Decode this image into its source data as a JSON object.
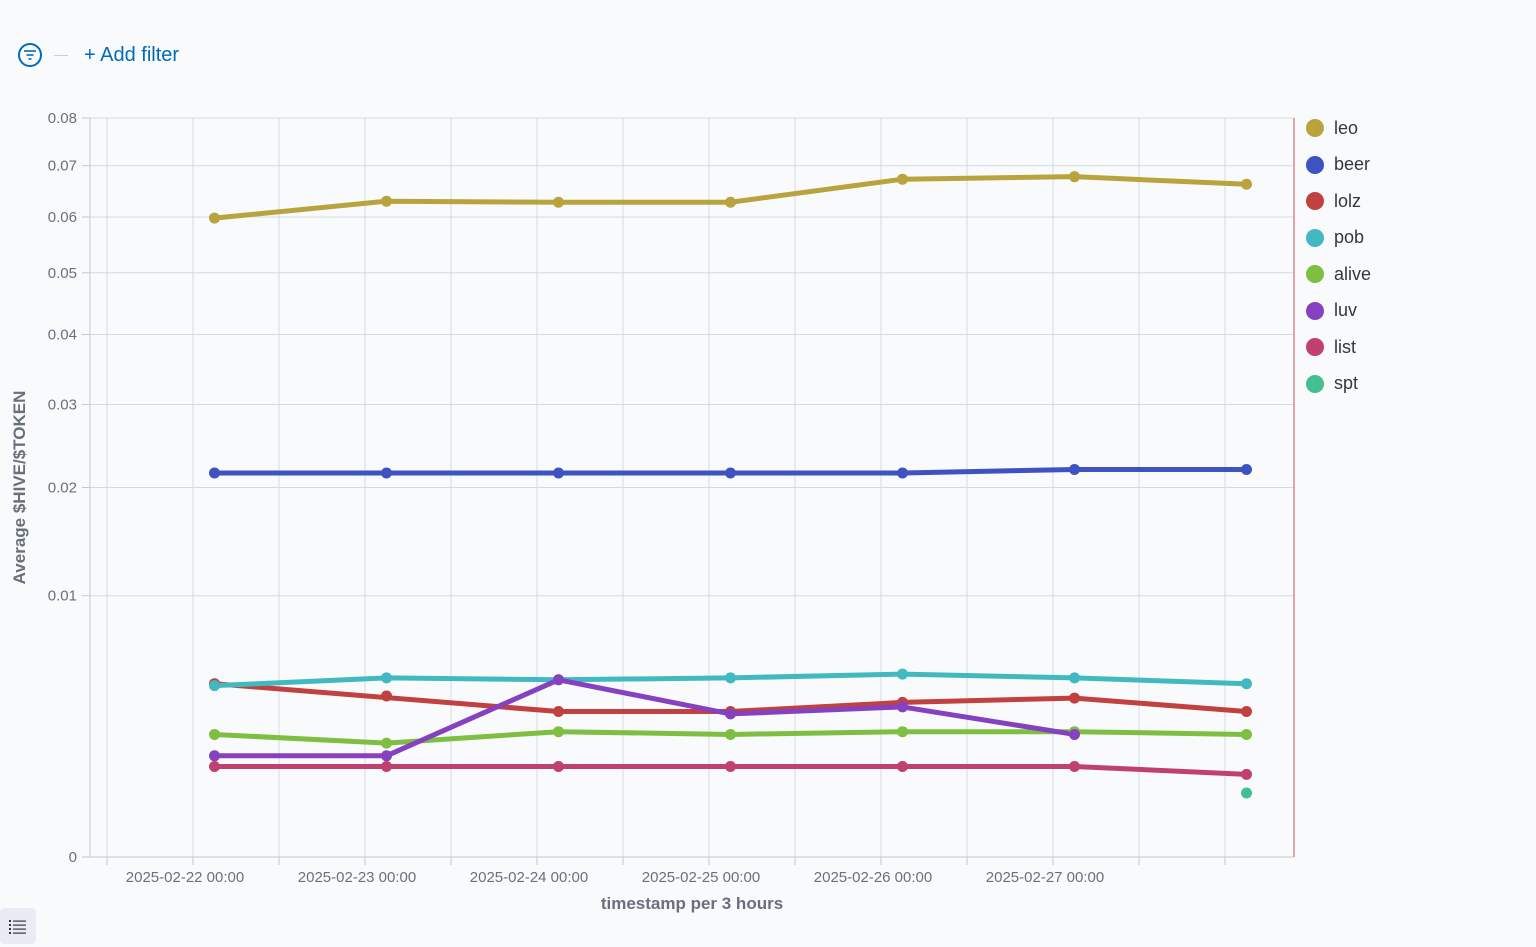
{
  "filter_bar": {
    "add_filter_label": "+ Add filter",
    "filter_icon": "filter-icon"
  },
  "toggle": {
    "icon": "list-icon"
  },
  "chart_data": {
    "type": "line",
    "xlabel": "timestamp per 3 hours",
    "ylabel": "Average $HIVE/$TOKEN",
    "x_ticks": [
      "2025-02-22 00:00",
      "2025-02-23 00:00",
      "2025-02-24 00:00",
      "2025-02-25 00:00",
      "2025-02-26 00:00",
      "2025-02-27 00:00"
    ],
    "y_ticks": [
      "0",
      "0.01",
      "0.02",
      "0.03",
      "0.04",
      "0.05",
      "0.06",
      "0.07",
      "0.08"
    ],
    "ylim": [
      0,
      0.08
    ],
    "y_scale": "sqrt",
    "grid": true,
    "legend_position": "right",
    "x": [
      "2025-02-22 03:00",
      "2025-02-23 03:00",
      "2025-02-24 03:00",
      "2025-02-25 03:00",
      "2025-02-26 03:00",
      "2025-02-27 03:00",
      "2025-02-28 03:00"
    ],
    "series": [
      {
        "name": "leo",
        "color": "#b9a33f",
        "values": [
          0.0598,
          0.063,
          0.0628,
          0.0628,
          0.0673,
          0.0678,
          0.0663
        ]
      },
      {
        "name": "beer",
        "color": "#3f52c1",
        "values": [
          0.0216,
          0.0216,
          0.0216,
          0.0216,
          0.0216,
          0.022,
          0.022
        ]
      },
      {
        "name": "lolz",
        "color": "#c0413f",
        "values": [
          0.0044,
          null,
          0.0031,
          0.0031,
          0.0035,
          0.0037,
          0.0031
        ]
      },
      {
        "name": "pob",
        "color": "#41b9c0",
        "values": [
          0.0043,
          0.0047,
          0.0046,
          0.0047,
          0.0049,
          0.0047,
          0.0044
        ]
      },
      {
        "name": "alive",
        "color": "#7ebf41",
        "values": [
          0.0022,
          0.0019,
          0.0023,
          0.0022,
          0.0023,
          0.0023,
          0.0022
        ]
      },
      {
        "name": "luv",
        "color": "#8541c0",
        "values": [
          0.0015,
          0.0015,
          0.0046,
          0.003,
          0.0033,
          0.0022,
          null
        ]
      },
      {
        "name": "list",
        "color": "#c0416f",
        "values": [
          0.0012,
          0.0012,
          0.0012,
          0.0012,
          0.0012,
          0.0012,
          0.001
        ]
      },
      {
        "name": "spt",
        "color": "#41c092",
        "values": [
          null,
          null,
          null,
          null,
          null,
          null,
          0.0006
        ]
      }
    ],
    "extra_points": [
      {
        "series": "lolz",
        "x": "2025-02-23 03:00",
        "y": 0.0038
      }
    ]
  }
}
